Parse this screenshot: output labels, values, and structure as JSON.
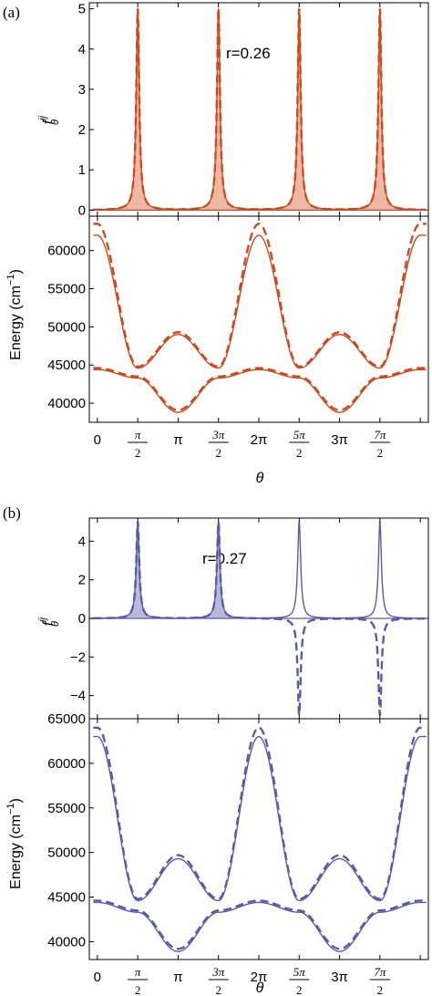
{
  "panels": [
    {
      "label": "(a)",
      "annotation": "r=0.26",
      "color": "#cc4a1e",
      "fill": "#efb8a5"
    },
    {
      "label": "(b)",
      "annotation": "r=0.27",
      "color": "#5a5aa8",
      "fill": "#b9b9dd"
    }
  ],
  "chart_data": [
    {
      "type": "line",
      "panel": "(a)",
      "ylabel": "f_θ^ij",
      "xlabel": "",
      "ylim": [
        -0.15,
        5.15
      ],
      "yticks": [
        0,
        1,
        2,
        3,
        4,
        5
      ],
      "xlim": [
        -0.2,
        8.2
      ],
      "peaks_x": [
        1,
        3,
        5,
        7
      ],
      "series": [
        {
          "style": "solid",
          "peak_heights": [
            5,
            5,
            5,
            5
          ],
          "shaded": true
        },
        {
          "style": "dashed",
          "peak_heights": [
            5,
            5,
            5,
            5
          ]
        }
      ]
    },
    {
      "type": "line",
      "panel": "(a)",
      "ylabel": "Energy (cm⁻¹)",
      "xlabel": "θ",
      "ylim": [
        37500,
        64500
      ],
      "yticks": [
        40000,
        45000,
        50000,
        55000,
        60000
      ],
      "xlim": [
        -0.2,
        8.2
      ],
      "x": [
        0,
        1,
        2,
        3,
        4,
        5,
        6,
        7,
        8
      ],
      "xtick_labels": [
        "0",
        "π/2",
        "π",
        "3π/2",
        "2π",
        "5π/2",
        "3π",
        "7π/2"
      ],
      "series": [
        {
          "style": "solid",
          "values": [
            62000,
            44600,
            49000,
            44600,
            62000,
            44600,
            49000,
            44600,
            62000
          ]
        },
        {
          "style": "dashed",
          "values": [
            63500,
            44800,
            49300,
            44800,
            63500,
            44800,
            49300,
            44800,
            63500
          ]
        },
        {
          "style": "solid",
          "values": [
            44400,
            43300,
            38800,
            43300,
            44400,
            43300,
            38800,
            43300,
            44400
          ]
        },
        {
          "style": "dashed",
          "values": [
            44600,
            43500,
            39100,
            43500,
            44600,
            43500,
            39100,
            43500,
            44600
          ]
        }
      ]
    },
    {
      "type": "line",
      "panel": "(b)",
      "ylabel": "f_θ^ij",
      "xlabel": "",
      "ylim": [
        -5.2,
        5.2
      ],
      "yticks": [
        -4,
        -2,
        0,
        2,
        4
      ],
      "xlim": [
        -0.2,
        8.2
      ],
      "peaks_x": [
        1,
        3,
        5,
        7
      ],
      "series": [
        {
          "style": "solid",
          "peak_heights": [
            5,
            5,
            5,
            5
          ],
          "shaded": [
            true,
            true,
            false,
            false
          ]
        },
        {
          "style": "dashed",
          "peak_heights": [
            5,
            5,
            -5,
            -5
          ]
        }
      ]
    },
    {
      "type": "line",
      "panel": "(b)",
      "ylabel": "Energy (cm⁻¹)",
      "xlabel": "θ",
      "ylim": [
        38000,
        65000
      ],
      "yticks": [
        40000,
        45000,
        50000,
        55000,
        60000,
        65000
      ],
      "xlim": [
        -0.2,
        8.2
      ],
      "x": [
        0,
        1,
        2,
        3,
        4,
        5,
        6,
        7,
        8
      ],
      "xtick_labels": [
        "0",
        "π/2",
        "π",
        "3π/2",
        "2π",
        "5π/2",
        "3π",
        "7π/2"
      ],
      "series": [
        {
          "style": "solid",
          "values": [
            63000,
            44600,
            49300,
            44600,
            63000,
            44600,
            49300,
            44600,
            63000
          ]
        },
        {
          "style": "dashed",
          "values": [
            64000,
            44800,
            49700,
            44800,
            64000,
            44800,
            49700,
            44800,
            64000
          ]
        },
        {
          "style": "solid",
          "values": [
            44400,
            43300,
            38900,
            43300,
            44400,
            43300,
            38900,
            43300,
            44400
          ]
        },
        {
          "style": "dashed",
          "values": [
            44600,
            43500,
            39200,
            43500,
            44600,
            43500,
            39200,
            43500,
            44600
          ]
        }
      ]
    }
  ]
}
